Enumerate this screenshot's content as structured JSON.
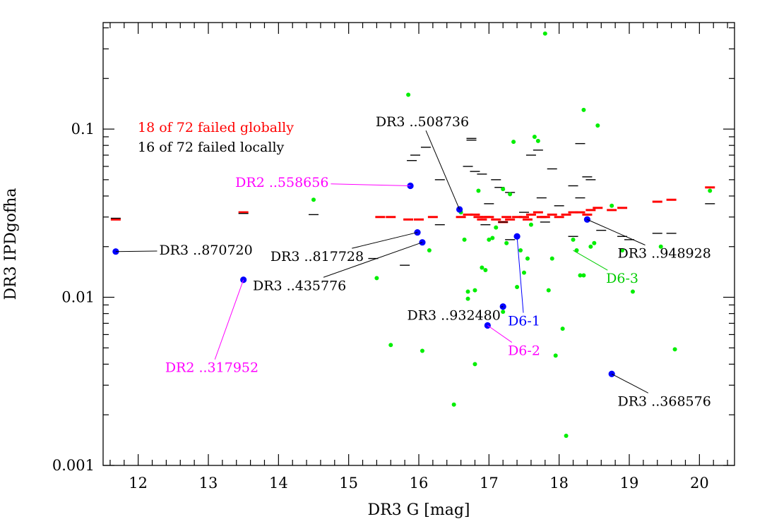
{
  "chart_data": {
    "type": "scatter",
    "xlabel": "DR3 G [mag]",
    "ylabel": "DR3 IPDgofha",
    "xlim": [
      11.5,
      20.5
    ],
    "ylim": [
      0.001,
      0.43
    ],
    "yscale": "log",
    "x_ticks": [
      12,
      13,
      14,
      15,
      16,
      17,
      18,
      19,
      20
    ],
    "y_ticks": [
      {
        "value": 0.1,
        "label": "0.1"
      },
      {
        "value": 0.01,
        "label": "0.01"
      },
      {
        "value": 0.001,
        "label": "0.001"
      }
    ],
    "grid": false,
    "legend": [
      {
        "text": "18 of 72 failed globally",
        "color": "#ff0000"
      },
      {
        "text": "16 of 72 failed locally",
        "color": "#000000"
      }
    ],
    "series": [
      {
        "marker": "dash",
        "color": "#ff0000",
        "points": [
          [
            11.68,
            0.029
          ],
          [
            13.5,
            0.032
          ],
          [
            15.45,
            0.03
          ],
          [
            15.6,
            0.03
          ],
          [
            15.85,
            0.029
          ],
          [
            16.0,
            0.029
          ],
          [
            16.2,
            0.03
          ],
          [
            16.6,
            0.03
          ],
          [
            16.7,
            0.031
          ],
          [
            16.8,
            0.031
          ],
          [
            16.85,
            0.03
          ],
          [
            16.9,
            0.029
          ],
          [
            16.95,
            0.03
          ],
          [
            17.0,
            0.03
          ],
          [
            17.1,
            0.029
          ],
          [
            17.2,
            0.028
          ],
          [
            17.25,
            0.03
          ],
          [
            17.3,
            0.029
          ],
          [
            17.4,
            0.03
          ],
          [
            17.5,
            0.03
          ],
          [
            17.55,
            0.029
          ],
          [
            17.6,
            0.031
          ],
          [
            17.7,
            0.032
          ],
          [
            17.75,
            0.03
          ],
          [
            17.8,
            0.03
          ],
          [
            17.9,
            0.031
          ],
          [
            18.0,
            0.03
          ],
          [
            18.1,
            0.031
          ],
          [
            18.2,
            0.032
          ],
          [
            18.3,
            0.032
          ],
          [
            18.4,
            0.031
          ],
          [
            18.45,
            0.033
          ],
          [
            18.55,
            0.034
          ],
          [
            18.75,
            0.033
          ],
          [
            18.9,
            0.034
          ],
          [
            19.4,
            0.037
          ],
          [
            19.6,
            0.038
          ],
          [
            20.15,
            0.045
          ]
        ]
      },
      {
        "marker": "dash",
        "color": "#000000",
        "points": [
          [
            11.68,
            0.0295
          ],
          [
            13.5,
            0.0315
          ],
          [
            14.5,
            0.031
          ],
          [
            15.35,
            0.017
          ],
          [
            15.8,
            0.0155
          ],
          [
            15.9,
            0.065
          ],
          [
            15.95,
            0.07
          ],
          [
            16.1,
            0.078
          ],
          [
            16.3,
            0.05
          ],
          [
            16.3,
            0.027
          ],
          [
            16.7,
            0.06
          ],
          [
            16.75,
            0.088
          ],
          [
            16.75,
            0.086
          ],
          [
            16.8,
            0.056
          ],
          [
            16.9,
            0.054
          ],
          [
            16.95,
            0.027
          ],
          [
            17.0,
            0.036
          ],
          [
            17.1,
            0.05
          ],
          [
            17.15,
            0.045
          ],
          [
            17.2,
            0.028
          ],
          [
            17.3,
            0.042
          ],
          [
            17.3,
            0.022
          ],
          [
            17.5,
            0.032
          ],
          [
            17.6,
            0.07
          ],
          [
            17.7,
            0.075
          ],
          [
            17.75,
            0.039
          ],
          [
            17.8,
            0.028
          ],
          [
            17.9,
            0.058
          ],
          [
            18.0,
            0.035
          ],
          [
            18.2,
            0.046
          ],
          [
            18.3,
            0.082
          ],
          [
            18.3,
            0.039
          ],
          [
            18.2,
            0.023
          ],
          [
            18.4,
            0.052
          ],
          [
            18.45,
            0.05
          ],
          [
            18.6,
            0.025
          ],
          [
            18.9,
            0.023
          ],
          [
            19.0,
            0.022
          ],
          [
            19.4,
            0.024
          ],
          [
            19.6,
            0.024
          ],
          [
            20.15,
            0.036
          ]
        ]
      },
      {
        "marker": "dot",
        "color": "#00ee00",
        "points": [
          [
            14.5,
            0.038
          ],
          [
            15.4,
            0.013
          ],
          [
            15.6,
            0.0052
          ],
          [
            15.85,
            0.16
          ],
          [
            16.05,
            0.0048
          ],
          [
            16.15,
            0.019
          ],
          [
            16.5,
            0.0023
          ],
          [
            16.6,
            0.032
          ],
          [
            16.65,
            0.022
          ],
          [
            16.7,
            0.0108
          ],
          [
            16.7,
            0.0098
          ],
          [
            16.8,
            0.011
          ],
          [
            16.8,
            0.004
          ],
          [
            16.85,
            0.043
          ],
          [
            16.9,
            0.015
          ],
          [
            16.95,
            0.0145
          ],
          [
            17.0,
            0.022
          ],
          [
            17.05,
            0.0225
          ],
          [
            17.1,
            0.026
          ],
          [
            17.2,
            0.044
          ],
          [
            17.2,
            0.0082
          ],
          [
            17.25,
            0.021
          ],
          [
            17.3,
            0.041
          ],
          [
            17.35,
            0.084
          ],
          [
            17.4,
            0.0115
          ],
          [
            17.45,
            0.019
          ],
          [
            17.5,
            0.014
          ],
          [
            17.55,
            0.017
          ],
          [
            17.6,
            0.027
          ],
          [
            17.65,
            0.09
          ],
          [
            17.7,
            0.085
          ],
          [
            17.8,
            0.37
          ],
          [
            17.85,
            0.011
          ],
          [
            17.9,
            0.017
          ],
          [
            17.95,
            0.0045
          ],
          [
            18.05,
            0.0065
          ],
          [
            18.1,
            0.0015
          ],
          [
            18.2,
            0.022
          ],
          [
            18.25,
            0.019
          ],
          [
            18.3,
            0.0135
          ],
          [
            18.35,
            0.13
          ],
          [
            18.35,
            0.0135
          ],
          [
            18.45,
            0.02
          ],
          [
            18.5,
            0.021
          ],
          [
            18.55,
            0.105
          ],
          [
            18.75,
            0.035
          ],
          [
            18.9,
            0.019
          ],
          [
            19.05,
            0.0108
          ],
          [
            19.45,
            0.02
          ],
          [
            19.65,
            0.0049
          ],
          [
            20.15,
            0.043
          ]
        ]
      },
      {
        "marker": "big-dot",
        "color": "#0000ff",
        "points": [
          [
            11.68,
            0.0187
          ],
          [
            13.5,
            0.0127
          ],
          [
            15.88,
            0.046
          ],
          [
            15.98,
            0.0243
          ],
          [
            16.05,
            0.0212
          ],
          [
            16.58,
            0.0333
          ],
          [
            17.2,
            0.0088
          ],
          [
            17.4,
            0.023
          ],
          [
            16.98,
            0.0068
          ],
          [
            18.4,
            0.029
          ],
          [
            18.75,
            0.0035
          ]
        ]
      }
    ],
    "annotations": [
      {
        "text": "DR3 ..870720",
        "color": "#000000",
        "point": [
          11.68,
          0.0187
        ],
        "label_at": [
          12.3,
          0.019
        ],
        "anchor": "start"
      },
      {
        "text": "DR2 ..317952",
        "color": "#ff00ff",
        "point": [
          13.5,
          0.0127
        ],
        "label_at": [
          13.05,
          0.0038
        ],
        "anchor": "middle"
      },
      {
        "text": "DR2 ..558656",
        "color": "#ff00ff",
        "point": [
          15.88,
          0.046
        ],
        "label_at": [
          14.05,
          0.048
        ],
        "anchor": "middle"
      },
      {
        "text": "DR3 ..817728",
        "color": "#000000",
        "point": [
          15.98,
          0.0243
        ],
        "label_at": [
          14.55,
          0.0174
        ],
        "anchor": "middle"
      },
      {
        "text": "DR3 ..435776",
        "color": "#000000",
        "point": [
          16.05,
          0.0212
        ],
        "label_at": [
          14.3,
          0.0117
        ],
        "anchor": "middle"
      },
      {
        "text": "DR3 ..508736",
        "color": "#000000",
        "point": [
          16.58,
          0.0333
        ],
        "label_at": [
          16.05,
          0.11
        ],
        "anchor": "middle"
      },
      {
        "text": "DR3 ..932480",
        "color": "#000000",
        "point": [
          17.2,
          0.0088
        ],
        "label_at": [
          16.5,
          0.0078
        ],
        "anchor": "middle"
      },
      {
        "text": "D6-1",
        "color": "#0000ff",
        "point": [
          17.4,
          0.023
        ],
        "label_at": [
          17.5,
          0.0072
        ],
        "anchor": "middle"
      },
      {
        "text": "D6-2",
        "color": "#ff00ff",
        "point": [
          16.98,
          0.0068
        ],
        "label_at": [
          17.5,
          0.0048
        ],
        "anchor": "middle"
      },
      {
        "text": "D6-3",
        "color": "#00cc00",
        "point": [
          18.2,
          0.019
        ],
        "label_at": [
          18.9,
          0.0129
        ],
        "anchor": "middle"
      },
      {
        "text": "DR3 ..948928",
        "color": "#000000",
        "point": [
          18.4,
          0.029
        ],
        "label_at": [
          19.5,
          0.0182
        ],
        "anchor": "middle"
      },
      {
        "text": "DR3 ..368576",
        "color": "#000000",
        "point": [
          18.75,
          0.0035
        ],
        "label_at": [
          19.5,
          0.0024
        ],
        "anchor": "middle"
      }
    ]
  }
}
